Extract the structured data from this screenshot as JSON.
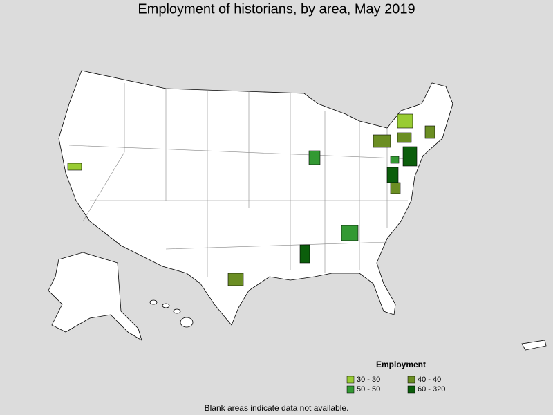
{
  "title": "Employment of historians, by area, May 2019",
  "legend": {
    "title": "Employment",
    "items": [
      {
        "label": "30 - 30",
        "color": "#99cc33"
      },
      {
        "label": "40 - 40",
        "color": "#6b8e23"
      },
      {
        "label": "50 - 50",
        "color": "#339933"
      },
      {
        "label": "60 - 320",
        "color": "#0b5e0b"
      }
    ]
  },
  "note": "Blank areas indicate data not available."
}
